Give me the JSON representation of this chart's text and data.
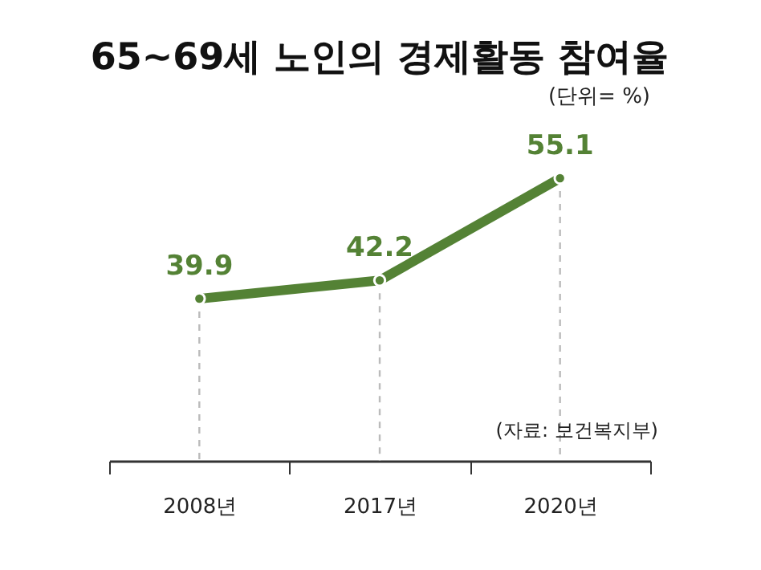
{
  "chart_data": {
    "type": "line",
    "title": "65~69세 노인의 경제활동 참여율",
    "annotations": [
      "(단위= %)",
      "(자료: 보건복지부)"
    ],
    "categories": [
      "2008년",
      "2017년",
      "2020년"
    ],
    "series": [
      {
        "color": "#548235",
        "values": [
          39.9,
          42.2,
          55.1
        ]
      }
    ],
    "data_labels": true,
    "marker": "circle",
    "line_style": "solid"
  }
}
